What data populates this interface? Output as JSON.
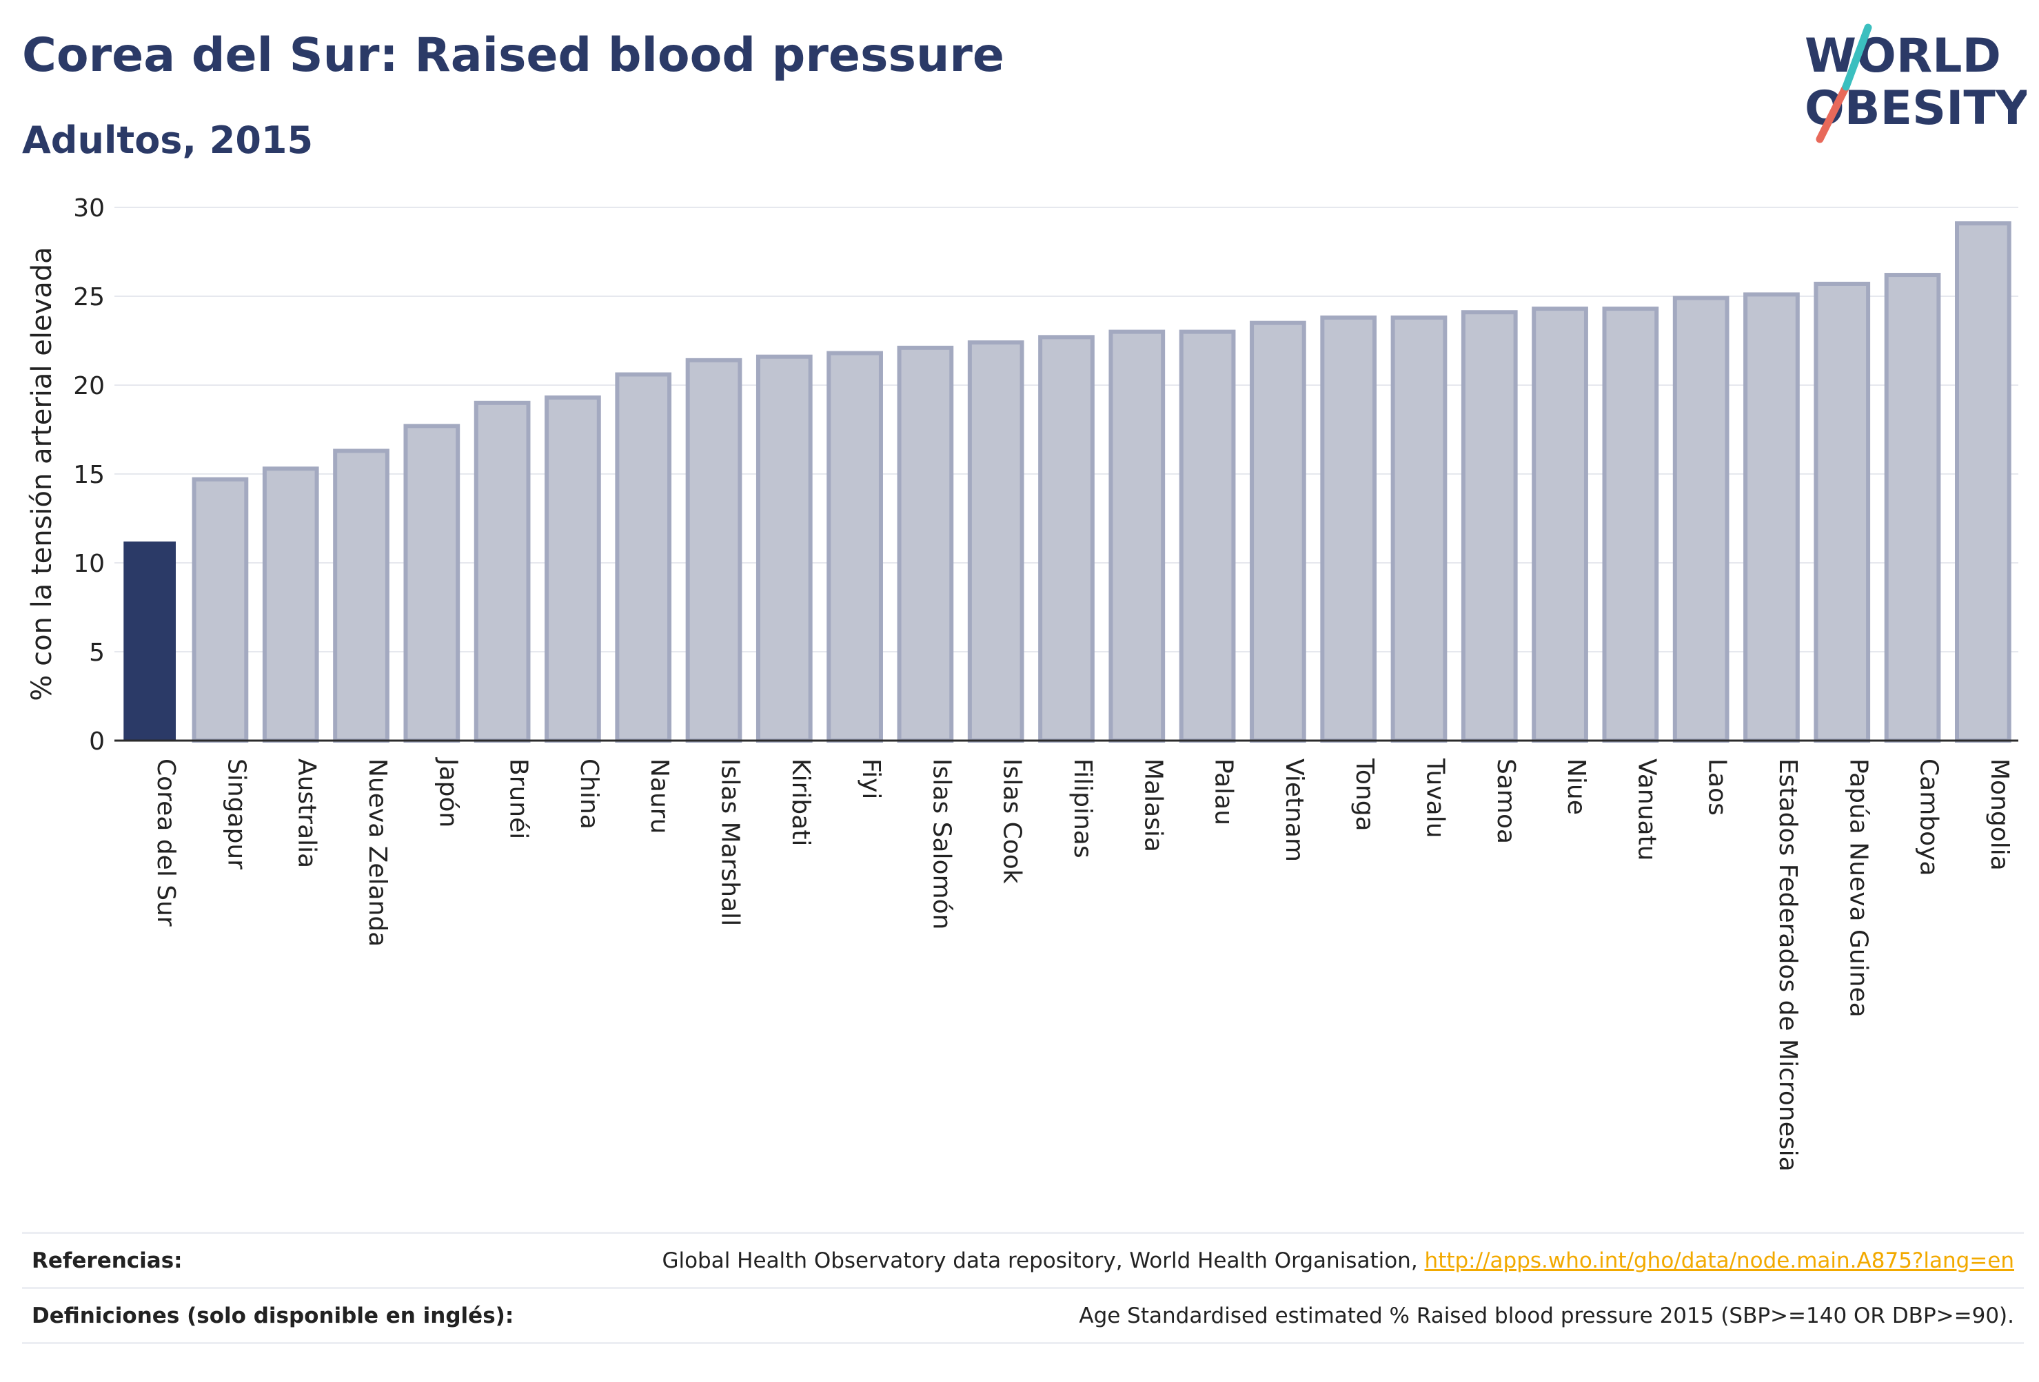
{
  "header": {
    "title": "Corea del Sur: Raised blood pressure",
    "subtitle": "Adultos, 2015"
  },
  "logo": {
    "line1": "WORLD",
    "line2": "OBESITY",
    "slash_colors": [
      "#e8695a",
      "#3bbfbf"
    ]
  },
  "colors": {
    "highlight_bar": "#2b3a67",
    "other_bar_fill": "#c0c4d1",
    "other_bar_border": "#a3a9c0",
    "grid": "#e6e8ee",
    "axis": "#2b2b2b"
  },
  "chart_data": {
    "type": "bar",
    "ylabel": "% con la tensión arterial elevada",
    "xlabel": "",
    "ylim": [
      0,
      30
    ],
    "yticks": [
      0,
      5,
      10,
      15,
      20,
      25,
      30
    ],
    "grid": true,
    "highlight": "Corea del Sur",
    "categories": [
      "Corea del Sur",
      "Singapur",
      "Australia",
      "Nueva Zelanda",
      "Japón",
      "Brunéi",
      "China",
      "Nauru",
      "Islas Marshall",
      "Kiribati",
      "Fiyi",
      "Islas Salomón",
      "Islas Cook",
      "Filipinas",
      "Malasia",
      "Palau",
      "Vietnam",
      "Tonga",
      "Tuvalu",
      "Samoa",
      "Niue",
      "Vanuatu",
      "Laos",
      "Estados Federados de Micronesia",
      "Papúa Nueva Guinea",
      "Camboya",
      "Mongolia"
    ],
    "values": [
      11.2,
      14.7,
      15.3,
      16.3,
      17.7,
      19.0,
      19.3,
      20.6,
      21.4,
      21.6,
      21.8,
      22.1,
      22.4,
      22.7,
      23.0,
      23.0,
      23.5,
      23.8,
      23.8,
      24.1,
      24.3,
      24.3,
      24.9,
      25.1,
      25.7,
      26.2,
      29.1
    ]
  },
  "footer": {
    "references_label": "Referencias:",
    "references_text": "Global Health Observatory data repository, World Health Organisation,",
    "references_link": "http://apps.who.int/gho/data/node.main.A875?lang=en",
    "definitions_label": "Definiciones (solo disponible en inglés):",
    "definitions_text": "Age Standardised estimated % Raised blood pressure 2015 (SBP>=140 OR DBP>=90)."
  }
}
